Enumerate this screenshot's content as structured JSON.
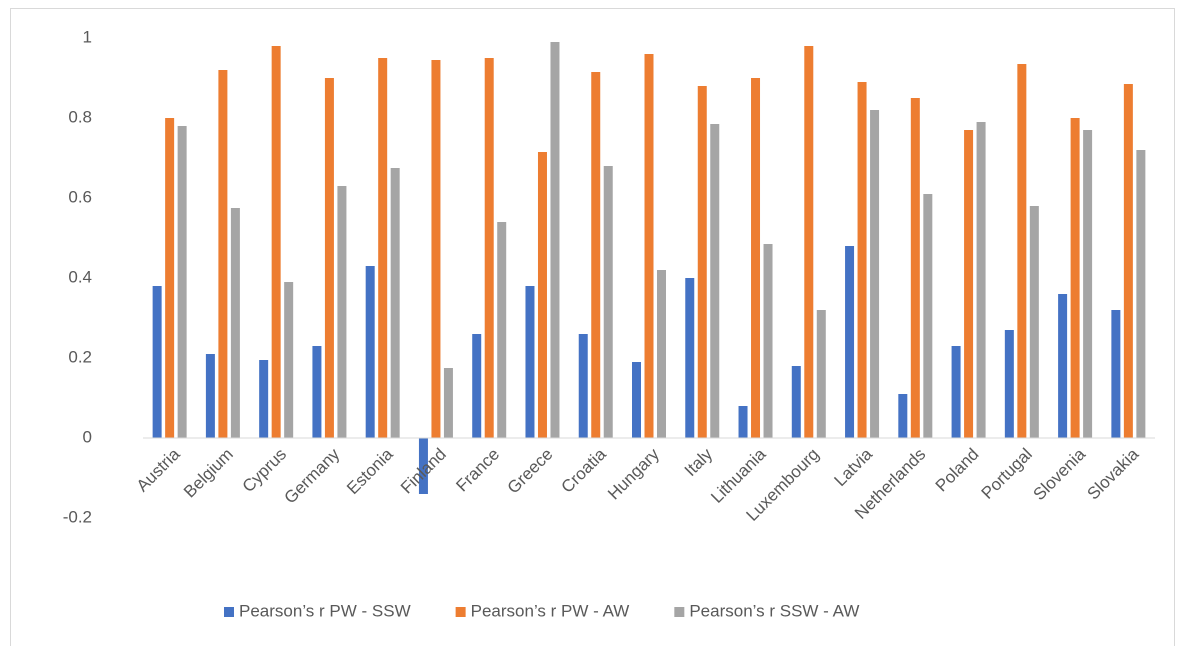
{
  "chart_data": {
    "type": "bar",
    "categories": [
      "Austria",
      "Belgium",
      "Cyprus",
      "Germany",
      "Estonia",
      "Finland",
      "France",
      "Greece",
      "Croatia",
      "Hungary",
      "Italy",
      "Lithuania",
      "Luxembourg",
      "Latvia",
      "Netherlands",
      "Poland",
      "Portugal",
      "Slovenia",
      "Slovakia"
    ],
    "series": [
      {
        "name": "Pearson’s r PW - SSW",
        "color": "#4472c4",
        "values": [
          0.38,
          0.21,
          0.195,
          0.23,
          0.43,
          -0.14,
          0.26,
          0.38,
          0.26,
          0.19,
          0.4,
          0.08,
          0.18,
          0.48,
          0.11,
          0.23,
          0.27,
          0.36,
          0.32
        ]
      },
      {
        "name": "Pearson’s r PW - AW",
        "color": "#ed7d31",
        "values": [
          0.8,
          0.92,
          0.98,
          0.9,
          0.95,
          0.945,
          0.95,
          0.715,
          0.915,
          0.96,
          0.88,
          0.9,
          0.98,
          0.89,
          0.85,
          0.77,
          0.935,
          0.8,
          0.885
        ]
      },
      {
        "name": "Pearson’s r SSW - AW",
        "color": "#a5a5a5",
        "values": [
          0.78,
          0.575,
          0.39,
          0.63,
          0.675,
          0.175,
          0.54,
          0.99,
          0.68,
          0.42,
          0.785,
          0.485,
          0.32,
          0.82,
          0.61,
          0.79,
          0.58,
          0.77,
          0.72
        ]
      }
    ],
    "ylim": [
      -0.2,
      1
    ],
    "yticks": [
      -0.2,
      0,
      0.2,
      0.4,
      0.6,
      0.8,
      1
    ],
    "grid": false,
    "legend": "bottom"
  }
}
